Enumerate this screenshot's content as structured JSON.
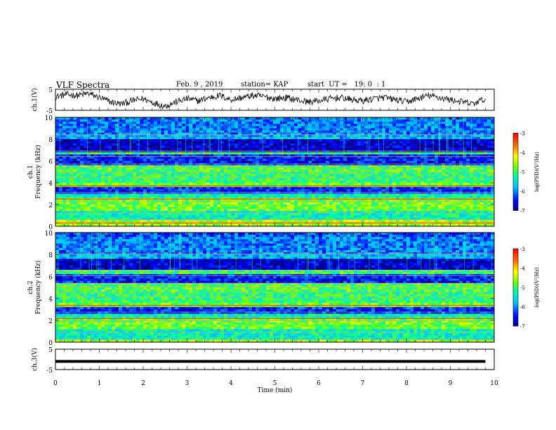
{
  "header": {
    "title": "VLF Spectra",
    "date": "Feb. 9 , 2019",
    "station": "station= KAP",
    "start": "start  UT =   19: 0  : 1"
  },
  "chart_data": [
    {
      "type": "line",
      "panel": "ch1-waveform",
      "ylabel": "ch.1(V)",
      "ylim": [
        -5,
        5
      ],
      "yticks": [
        "5",
        "-5"
      ],
      "xlim": [
        0,
        10
      ],
      "x": [
        0,
        0.25,
        0.5,
        0.75,
        1,
        1.25,
        1.5,
        1.75,
        2,
        2.25,
        2.5,
        2.75,
        3,
        3.25,
        3.5,
        3.75,
        4,
        4.25,
        4.5,
        4.75,
        5,
        5.25,
        5.5,
        5.75,
        6,
        6.25,
        6.5,
        6.75,
        7,
        7.25,
        7.5,
        7.75,
        8,
        8.25,
        8.5,
        8.75,
        9,
        9.25,
        9.5,
        9.8
      ],
      "y": [
        1.5,
        2.5,
        2.0,
        3.0,
        1.0,
        -1.0,
        -2.0,
        -0.5,
        0.5,
        -1.5,
        -3.0,
        -1.0,
        0.5,
        -0.5,
        1.0,
        2.0,
        0.0,
        1.0,
        2.0,
        1.5,
        0.5,
        1.0,
        0.0,
        -1.0,
        -0.5,
        0.5,
        1.0,
        0.0,
        -0.5,
        0.5,
        1.0,
        0.0,
        -1.0,
        0.5,
        2.0,
        1.0,
        0.0,
        -1.0,
        -2.0,
        0.5
      ]
    },
    {
      "type": "heatmap",
      "panel": "ch1-spectrogram",
      "ylabel_line1": "ch.1",
      "ylabel_line2": "Frequency  (kHz)",
      "ylim": [
        0,
        10
      ],
      "yticks": [
        "0",
        "2",
        "4",
        "6",
        "8",
        "10"
      ],
      "colorbar_label": "log(PSD)(V²/Hz)",
      "colorbar_range": [
        -7,
        -3
      ],
      "colorbar_ticks": [
        "-3",
        "-4",
        "-5",
        "-6",
        "-7"
      ]
    },
    {
      "type": "heatmap",
      "panel": "ch2-spectrogram",
      "ylabel_line1": "ch.2",
      "ylabel_line2": "Frequency  (kHz)",
      "ylim": [
        0,
        10
      ],
      "yticks": [
        "0",
        "2",
        "4",
        "6",
        "8",
        "10"
      ],
      "colorbar_label": "log(PSD)(V²/Hz)",
      "colorbar_range": [
        -7,
        -3
      ],
      "colorbar_ticks": [
        "-3",
        "-4",
        "-5",
        "-6",
        "-7"
      ]
    },
    {
      "type": "line",
      "panel": "ch3-waveform",
      "ylabel": "ch.3(V)",
      "ylim": [
        -5,
        5
      ],
      "yticks": [
        "5",
        "-5"
      ],
      "x": [
        0,
        9.8
      ],
      "y": [
        -1,
        -1
      ],
      "xlabel": "Time  (min)",
      "xlim": [
        0,
        10
      ],
      "xticks": [
        "0",
        "1",
        "2",
        "3",
        "4",
        "5",
        "6",
        "7",
        "8",
        "9",
        "10"
      ]
    }
  ],
  "colors": {
    "waveform": "#000000",
    "colormap": [
      "#000080",
      "#0000ff",
      "#00bfff",
      "#00ffa0",
      "#7fff00",
      "#ffff00",
      "#ff8000",
      "#ff0000"
    ]
  }
}
